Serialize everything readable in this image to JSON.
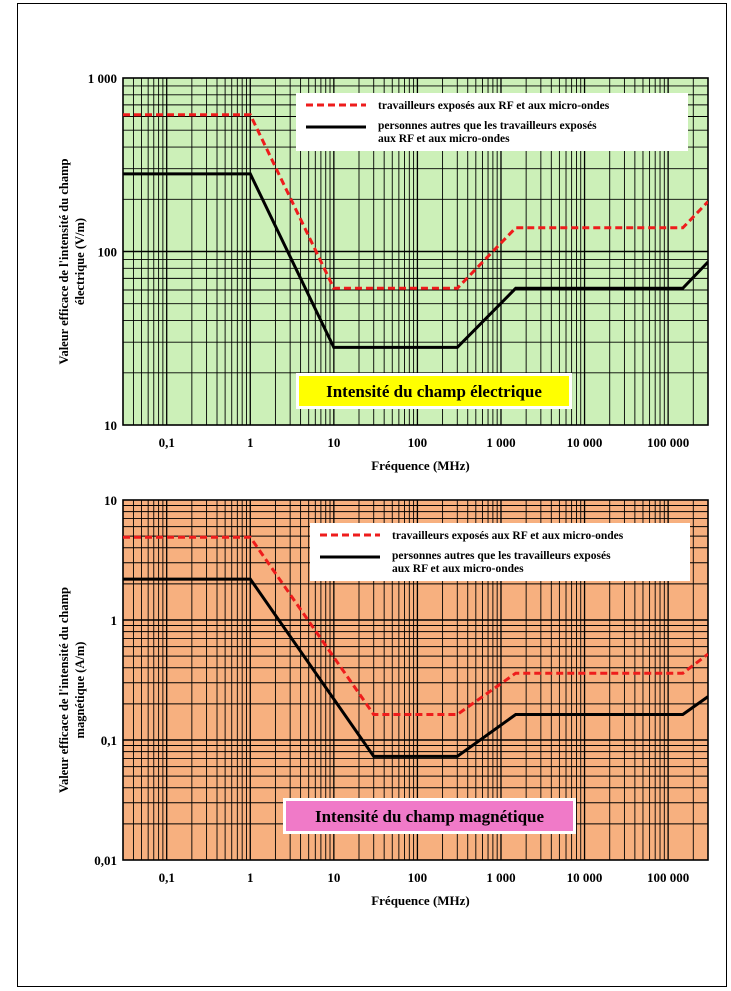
{
  "chart_data": [
    {
      "type": "line",
      "scale": "log-log",
      "background": "#ccf0b8",
      "xlabel": "Fréquence (MHz)",
      "ylabel": "Valeur efficace de l'intensité du champ électrique (V/m)",
      "ylabel_lines": [
        "Valeur efficace de l'intensité du champ",
        "électrique (V/m)"
      ],
      "xlim": [
        0.03,
        300000
      ],
      "ylim": [
        10,
        1000
      ],
      "x_ticks": [
        0.1,
        1,
        10,
        100,
        1000,
        10000,
        100000
      ],
      "x_tick_labels": [
        "0,1",
        "1",
        "10",
        "100",
        "1 000",
        "10 000",
        "100 000"
      ],
      "y_ticks": [
        10,
        100,
        1000
      ],
      "y_tick_labels": [
        "10",
        "100",
        "1 000"
      ],
      "grid": true,
      "legend_position": "top-right",
      "annotation": {
        "text": "Intensité du champ électrique",
        "bg": "#ffff00",
        "position": "bottom-right"
      },
      "series": [
        {
          "name": "travailleurs exposés aux RF et aux micro-ondes",
          "style": "dashed",
          "color": "#ee1c1c",
          "x": [
            0.03,
            1,
            10,
            300,
            1500,
            150000,
            300000
          ],
          "y": [
            614,
            614,
            61.4,
            61.4,
            137,
            137,
            194
          ]
        },
        {
          "name": "personnes autres que les travailleurs exposés aux RF et aux micro-ondes",
          "name_lines": [
            "personnes autres que les travailleurs exposés",
            "aux RF et aux micro-ondes"
          ],
          "style": "solid",
          "color": "#000000",
          "x": [
            0.03,
            1,
            10,
            300,
            1500,
            150000,
            300000
          ],
          "y": [
            280,
            280,
            28,
            28,
            61.4,
            61.4,
            87
          ]
        }
      ]
    },
    {
      "type": "line",
      "scale": "log-log",
      "background": "#f7b07f",
      "xlabel": "Fréquence (MHz)",
      "ylabel": "Valeur efficace de l'intensité du champ magnétique (A/m)",
      "ylabel_lines": [
        "Valeur efficace de l'intensité du champ",
        "magnétique (A/m)"
      ],
      "xlim": [
        0.03,
        300000
      ],
      "ylim": [
        0.01,
        10
      ],
      "x_ticks": [
        0.1,
        1,
        10,
        100,
        1000,
        10000,
        100000
      ],
      "x_tick_labels": [
        "0,1",
        "1",
        "10",
        "100",
        "1 000",
        "10 000",
        "100 000"
      ],
      "y_ticks": [
        0.01,
        0.1,
        1,
        10
      ],
      "y_tick_labels": [
        "0,01",
        "0,1",
        "1",
        "10"
      ],
      "grid": true,
      "legend_position": "top-right",
      "annotation": {
        "text": "Intensité du champ magnétique",
        "bg": "#f07ac8",
        "position": "bottom-center"
      },
      "series": [
        {
          "name": "travailleurs exposés aux RF et aux micro-ondes",
          "style": "dashed",
          "color": "#ee1c1c",
          "x": [
            0.03,
            1,
            30,
            300,
            1500,
            150000,
            300000
          ],
          "y": [
            4.9,
            4.9,
            0.163,
            0.163,
            0.36,
            0.36,
            0.52
          ]
        },
        {
          "name": "personnes autres que les travailleurs exposés aux RF et aux micro-ondes",
          "name_lines": [
            "personnes autres que les travailleurs exposés",
            "aux RF et aux micro-ondes"
          ],
          "style": "solid",
          "color": "#000000",
          "x": [
            0.03,
            1,
            30,
            300,
            1500,
            150000,
            300000
          ],
          "y": [
            2.19,
            2.19,
            0.073,
            0.073,
            0.163,
            0.163,
            0.23
          ]
        }
      ]
    }
  ]
}
